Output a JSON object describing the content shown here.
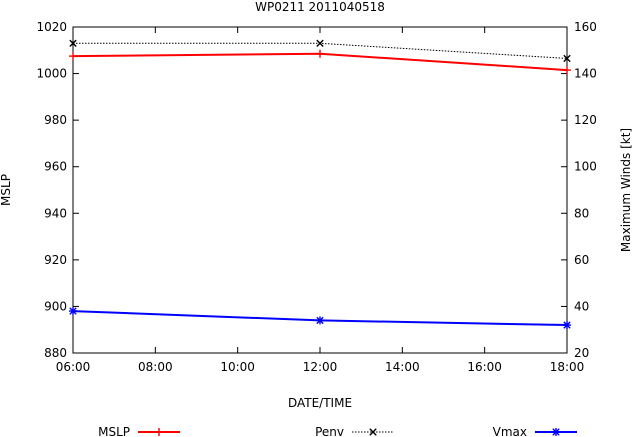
{
  "chart_data": {
    "type": "line",
    "title": "WP0211 2011040518",
    "xlabel": "DATE/TIME",
    "ylabel_left": "MSLP",
    "ylabel_right": "Maximum Winds [kt]",
    "x_ticks": [
      "06:00",
      "08:00",
      "10:00",
      "12:00",
      "14:00",
      "16:00",
      "18:00"
    ],
    "x_hours": [
      6,
      8,
      10,
      12,
      14,
      16,
      18
    ],
    "xlim": [
      6,
      18
    ],
    "ylim_left": [
      880,
      1020
    ],
    "yticks_left": [
      880,
      900,
      920,
      940,
      960,
      980,
      1000,
      1020
    ],
    "ylim_right": [
      20,
      160
    ],
    "yticks_right": [
      20,
      40,
      60,
      80,
      100,
      120,
      140,
      160
    ],
    "grid": false,
    "legend_position": "bottom",
    "series": [
      {
        "name": "MSLP",
        "axis": "left",
        "color": "#ff0000",
        "marker": "plus",
        "style": "solid",
        "x": [
          "06:00",
          "12:00",
          "18:00"
        ],
        "hours": [
          6,
          12,
          18
        ],
        "values": [
          1007.5,
          1008.5,
          1001.5
        ]
      },
      {
        "name": "Penv",
        "axis": "left",
        "color": "#000000",
        "marker": "x",
        "style": "dotted",
        "x": [
          "06:00",
          "12:00",
          "18:00"
        ],
        "hours": [
          6,
          12,
          18
        ],
        "values": [
          1013,
          1013,
          1006.5
        ]
      },
      {
        "name": "Vmax",
        "axis": "right",
        "color": "#0000ff",
        "marker": "star",
        "style": "solid",
        "x": [
          "06:00",
          "12:00",
          "18:00"
        ],
        "hours": [
          6,
          12,
          18
        ],
        "values": [
          38,
          34,
          32
        ]
      }
    ]
  }
}
